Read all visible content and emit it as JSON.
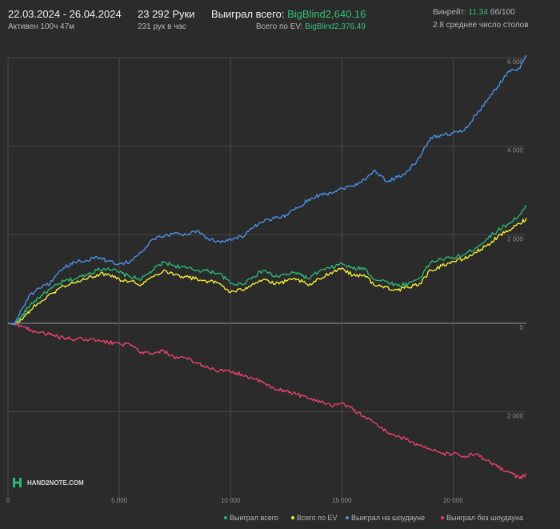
{
  "header": {
    "date_range": "22.03.2024 - 26.04.2024",
    "active_time": "Активен 100ч 47м",
    "hands_total": "23 292 Руки",
    "hands_per_hour": "231 рук в час",
    "won_label": "Выиграл всего:",
    "won_value": "BigBlind2,640.16",
    "ev_label": "Всего по EV:",
    "ev_value": "BigBlind2,376.49",
    "winrate_label": "Винрейт:",
    "winrate_value": "11.34",
    "winrate_unit": "бб/100",
    "tables_avg": "2.8 среднее число столов"
  },
  "logo": {
    "text": "HAND2NOTE.COM"
  },
  "colors": {
    "background": "#2b2b2b",
    "grid": "#4a4a4a",
    "zero_line": "#9a9a9a",
    "green": "#2bb673",
    "yellow": "#f2ea3a",
    "blue": "#4a90e2",
    "red": "#e8416d",
    "accent_text": "#33c27a"
  },
  "chart_data": {
    "type": "line",
    "xlim": [
      0,
      23292
    ],
    "ylim": [
      -3500,
      6000
    ],
    "x_ticks": [
      {
        "value": 0,
        "label": "0"
      },
      {
        "value": 5000,
        "label": "5 000"
      },
      {
        "value": 10000,
        "label": "10 000"
      },
      {
        "value": 15000,
        "label": "15 000"
      },
      {
        "value": 20000,
        "label": "20 000"
      }
    ],
    "y_ticks": [
      {
        "value": 6000,
        "label": "6 000"
      },
      {
        "value": 4000,
        "label": "4 000"
      },
      {
        "value": 2000,
        "label": "2 000"
      },
      {
        "value": 0,
        "label": "0"
      },
      {
        "value": -2000,
        "label": "2 000"
      }
    ],
    "grid": true,
    "legend_position": "bottom-right",
    "series": [
      {
        "name": "Выиграл всего",
        "color": "#2bb673",
        "points": [
          [
            0,
            0
          ],
          [
            300,
            -30
          ],
          [
            600,
            150
          ],
          [
            1000,
            420
          ],
          [
            1500,
            630
          ],
          [
            2000,
            800
          ],
          [
            2500,
            950
          ],
          [
            3000,
            1000
          ],
          [
            3500,
            1100
          ],
          [
            4000,
            1200
          ],
          [
            4500,
            1250
          ],
          [
            5000,
            1150
          ],
          [
            5500,
            1050
          ],
          [
            6000,
            1000
          ],
          [
            6500,
            1200
          ],
          [
            7000,
            1380
          ],
          [
            7500,
            1300
          ],
          [
            8000,
            1250
          ],
          [
            8500,
            1200
          ],
          [
            9000,
            1180
          ],
          [
            9500,
            1130
          ],
          [
            10000,
            900
          ],
          [
            10500,
            880
          ],
          [
            11000,
            1050
          ],
          [
            11500,
            1200
          ],
          [
            12000,
            1050
          ],
          [
            12500,
            1100
          ],
          [
            13000,
            1150
          ],
          [
            13500,
            1000
          ],
          [
            14000,
            1180
          ],
          [
            14500,
            1250
          ],
          [
            15000,
            1350
          ],
          [
            15500,
            1230
          ],
          [
            16000,
            1250
          ],
          [
            16500,
            980
          ],
          [
            17000,
            950
          ],
          [
            17500,
            850
          ],
          [
            18000,
            900
          ],
          [
            18500,
            1030
          ],
          [
            19000,
            1380
          ],
          [
            19500,
            1450
          ],
          [
            20000,
            1480
          ],
          [
            20500,
            1550
          ],
          [
            21000,
            1700
          ],
          [
            21500,
            1900
          ],
          [
            22000,
            2100
          ],
          [
            22500,
            2250
          ],
          [
            23000,
            2450
          ],
          [
            23292,
            2640
          ]
        ]
      },
      {
        "name": "Всего по EV",
        "color": "#f2ea3a",
        "points": [
          [
            0,
            0
          ],
          [
            300,
            -20
          ],
          [
            600,
            80
          ],
          [
            1000,
            300
          ],
          [
            1500,
            500
          ],
          [
            2000,
            680
          ],
          [
            2500,
            850
          ],
          [
            3000,
            920
          ],
          [
            3500,
            1000
          ],
          [
            4000,
            1100
          ],
          [
            4500,
            1120
          ],
          [
            5000,
            1000
          ],
          [
            5500,
            950
          ],
          [
            6000,
            880
          ],
          [
            6500,
            1050
          ],
          [
            7000,
            1200
          ],
          [
            7500,
            1100
          ],
          [
            8000,
            1050
          ],
          [
            8500,
            1000
          ],
          [
            9000,
            950
          ],
          [
            9500,
            900
          ],
          [
            10000,
            700
          ],
          [
            10500,
            750
          ],
          [
            11000,
            900
          ],
          [
            11500,
            1000
          ],
          [
            12000,
            880
          ],
          [
            12500,
            950
          ],
          [
            13000,
            1000
          ],
          [
            13500,
            850
          ],
          [
            14000,
            1000
          ],
          [
            14500,
            1150
          ],
          [
            15000,
            1250
          ],
          [
            15500,
            1080
          ],
          [
            16000,
            1100
          ],
          [
            16500,
            850
          ],
          [
            17000,
            820
          ],
          [
            17500,
            750
          ],
          [
            18000,
            800
          ],
          [
            18500,
            900
          ],
          [
            19000,
            1200
          ],
          [
            19500,
            1300
          ],
          [
            20000,
            1400
          ],
          [
            20500,
            1450
          ],
          [
            21000,
            1600
          ],
          [
            21500,
            1750
          ],
          [
            22000,
            1950
          ],
          [
            22500,
            2100
          ],
          [
            23000,
            2250
          ],
          [
            23292,
            2376
          ]
        ]
      },
      {
        "name": "Выиграл на шоудауне",
        "color": "#4a90e2",
        "points": [
          [
            0,
            0
          ],
          [
            300,
            -20
          ],
          [
            600,
            300
          ],
          [
            1000,
            650
          ],
          [
            1500,
            800
          ],
          [
            2000,
            950
          ],
          [
            2500,
            1250
          ],
          [
            3000,
            1380
          ],
          [
            3500,
            1420
          ],
          [
            4000,
            1500
          ],
          [
            4500,
            1400
          ],
          [
            5000,
            1350
          ],
          [
            5500,
            1400
          ],
          [
            6000,
            1600
          ],
          [
            6500,
            1900
          ],
          [
            7000,
            1950
          ],
          [
            7500,
            2050
          ],
          [
            8000,
            2000
          ],
          [
            8500,
            2100
          ],
          [
            9000,
            1900
          ],
          [
            9500,
            1850
          ],
          [
            10000,
            1900
          ],
          [
            10500,
            1950
          ],
          [
            11000,
            2150
          ],
          [
            11500,
            2300
          ],
          [
            12000,
            2380
          ],
          [
            12500,
            2450
          ],
          [
            13000,
            2600
          ],
          [
            13500,
            2800
          ],
          [
            14000,
            2900
          ],
          [
            14500,
            2950
          ],
          [
            15000,
            3050
          ],
          [
            15500,
            3100
          ],
          [
            16000,
            3250
          ],
          [
            16500,
            3450
          ],
          [
            17000,
            3200
          ],
          [
            17500,
            3300
          ],
          [
            18000,
            3450
          ],
          [
            18500,
            3750
          ],
          [
            19000,
            4200
          ],
          [
            19500,
            4250
          ],
          [
            20000,
            4300
          ],
          [
            20500,
            4350
          ],
          [
            21000,
            4700
          ],
          [
            21500,
            5000
          ],
          [
            22000,
            5350
          ],
          [
            22500,
            5700
          ],
          [
            23000,
            5750
          ],
          [
            23292,
            6050
          ]
        ]
      },
      {
        "name": "Выиграл без шоудауна",
        "color": "#e8416d",
        "points": [
          [
            0,
            0
          ],
          [
            300,
            -30
          ],
          [
            600,
            -50
          ],
          [
            1000,
            -150
          ],
          [
            1500,
            -200
          ],
          [
            2000,
            -280
          ],
          [
            2500,
            -330
          ],
          [
            3000,
            -370
          ],
          [
            3500,
            -350
          ],
          [
            4000,
            -400
          ],
          [
            4500,
            -430
          ],
          [
            5000,
            -450
          ],
          [
            5500,
            -500
          ],
          [
            6000,
            -650
          ],
          [
            6500,
            -700
          ],
          [
            7000,
            -620
          ],
          [
            7500,
            -800
          ],
          [
            8000,
            -780
          ],
          [
            8500,
            -900
          ],
          [
            9000,
            -1000
          ],
          [
            9500,
            -1070
          ],
          [
            10000,
            -1100
          ],
          [
            10500,
            -1150
          ],
          [
            11000,
            -1250
          ],
          [
            11500,
            -1350
          ],
          [
            12000,
            -1500
          ],
          [
            12500,
            -1520
          ],
          [
            13000,
            -1600
          ],
          [
            13500,
            -1700
          ],
          [
            14000,
            -1750
          ],
          [
            14500,
            -1850
          ],
          [
            15000,
            -1800
          ],
          [
            15500,
            -1950
          ],
          [
            16000,
            -2100
          ],
          [
            16500,
            -2250
          ],
          [
            17000,
            -2450
          ],
          [
            17500,
            -2550
          ],
          [
            18000,
            -2650
          ],
          [
            18500,
            -2750
          ],
          [
            19000,
            -2850
          ],
          [
            19500,
            -2950
          ],
          [
            20000,
            -2950
          ],
          [
            20500,
            -3000
          ],
          [
            21000,
            -2950
          ],
          [
            21500,
            -3100
          ],
          [
            22000,
            -3250
          ],
          [
            22500,
            -3350
          ],
          [
            23000,
            -3500
          ],
          [
            23292,
            -3400
          ]
        ]
      }
    ]
  }
}
